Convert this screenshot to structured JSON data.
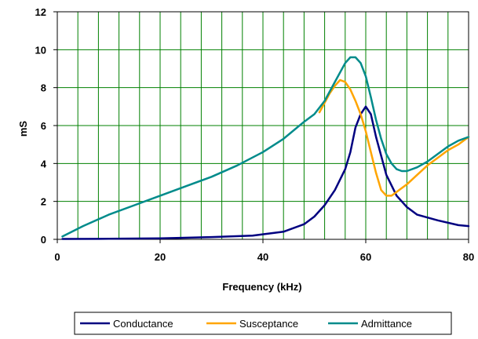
{
  "chart_data": {
    "type": "line",
    "title": "",
    "xlabel": "Frequency (kHz)",
    "ylabel": "mS",
    "xlim": [
      0,
      80
    ],
    "ylim": [
      0,
      12
    ],
    "x_ticks": [
      0,
      20,
      40,
      60,
      80
    ],
    "y_ticks": [
      0,
      2,
      4,
      6,
      8,
      10,
      12
    ],
    "x_grid_step": 4,
    "y_grid_step": 2,
    "grid": true,
    "legend_position": "bottom",
    "series": [
      {
        "name": "Conductance",
        "color": "#000080",
        "points": [
          [
            1,
            0.02
          ],
          [
            10,
            0.03
          ],
          [
            20,
            0.05
          ],
          [
            30,
            0.12
          ],
          [
            38,
            0.2
          ],
          [
            44,
            0.4
          ],
          [
            48,
            0.8
          ],
          [
            50,
            1.2
          ],
          [
            52,
            1.8
          ],
          [
            54,
            2.6
          ],
          [
            56,
            3.7
          ],
          [
            57,
            4.6
          ],
          [
            58,
            5.9
          ],
          [
            59,
            6.6
          ],
          [
            60,
            7.0
          ],
          [
            61,
            6.6
          ],
          [
            62,
            5.4
          ],
          [
            64,
            3.4
          ],
          [
            66,
            2.3
          ],
          [
            68,
            1.7
          ],
          [
            70,
            1.3
          ],
          [
            74,
            1.0
          ],
          [
            78,
            0.75
          ],
          [
            80,
            0.7
          ]
        ]
      },
      {
        "name": "Susceptance",
        "color": "#FFA500",
        "points": [
          [
            51,
            6.7
          ],
          [
            52,
            7.2
          ],
          [
            53,
            7.7
          ],
          [
            54,
            8.1
          ],
          [
            55,
            8.4
          ],
          [
            56,
            8.3
          ],
          [
            57,
            7.9
          ],
          [
            58,
            7.3
          ],
          [
            59,
            6.6
          ],
          [
            60,
            5.7
          ],
          [
            61,
            4.6
          ],
          [
            62,
            3.5
          ],
          [
            63,
            2.6
          ],
          [
            64,
            2.3
          ],
          [
            65,
            2.3
          ],
          [
            66,
            2.5
          ],
          [
            68,
            2.9
          ],
          [
            70,
            3.4
          ],
          [
            72,
            3.9
          ],
          [
            74,
            4.3
          ],
          [
            76,
            4.7
          ],
          [
            78,
            5.0
          ],
          [
            80,
            5.4
          ]
        ]
      },
      {
        "name": "Admittance",
        "color": "#008B8B",
        "points": [
          [
            1,
            0.15
          ],
          [
            5,
            0.7
          ],
          [
            10,
            1.3
          ],
          [
            15,
            1.8
          ],
          [
            20,
            2.3
          ],
          [
            25,
            2.8
          ],
          [
            30,
            3.3
          ],
          [
            35,
            3.9
          ],
          [
            40,
            4.6
          ],
          [
            44,
            5.3
          ],
          [
            48,
            6.2
          ],
          [
            50,
            6.6
          ],
          [
            52,
            7.3
          ],
          [
            54,
            8.3
          ],
          [
            56,
            9.3
          ],
          [
            57,
            9.6
          ],
          [
            58,
            9.6
          ],
          [
            59,
            9.3
          ],
          [
            60,
            8.6
          ],
          [
            61,
            7.5
          ],
          [
            62,
            6.3
          ],
          [
            63,
            5.3
          ],
          [
            64,
            4.5
          ],
          [
            65,
            4.0
          ],
          [
            66,
            3.7
          ],
          [
            67,
            3.6
          ],
          [
            68,
            3.6
          ],
          [
            70,
            3.8
          ],
          [
            72,
            4.1
          ],
          [
            74,
            4.5
          ],
          [
            76,
            4.9
          ],
          [
            78,
            5.2
          ],
          [
            80,
            5.4
          ]
        ]
      }
    ]
  }
}
